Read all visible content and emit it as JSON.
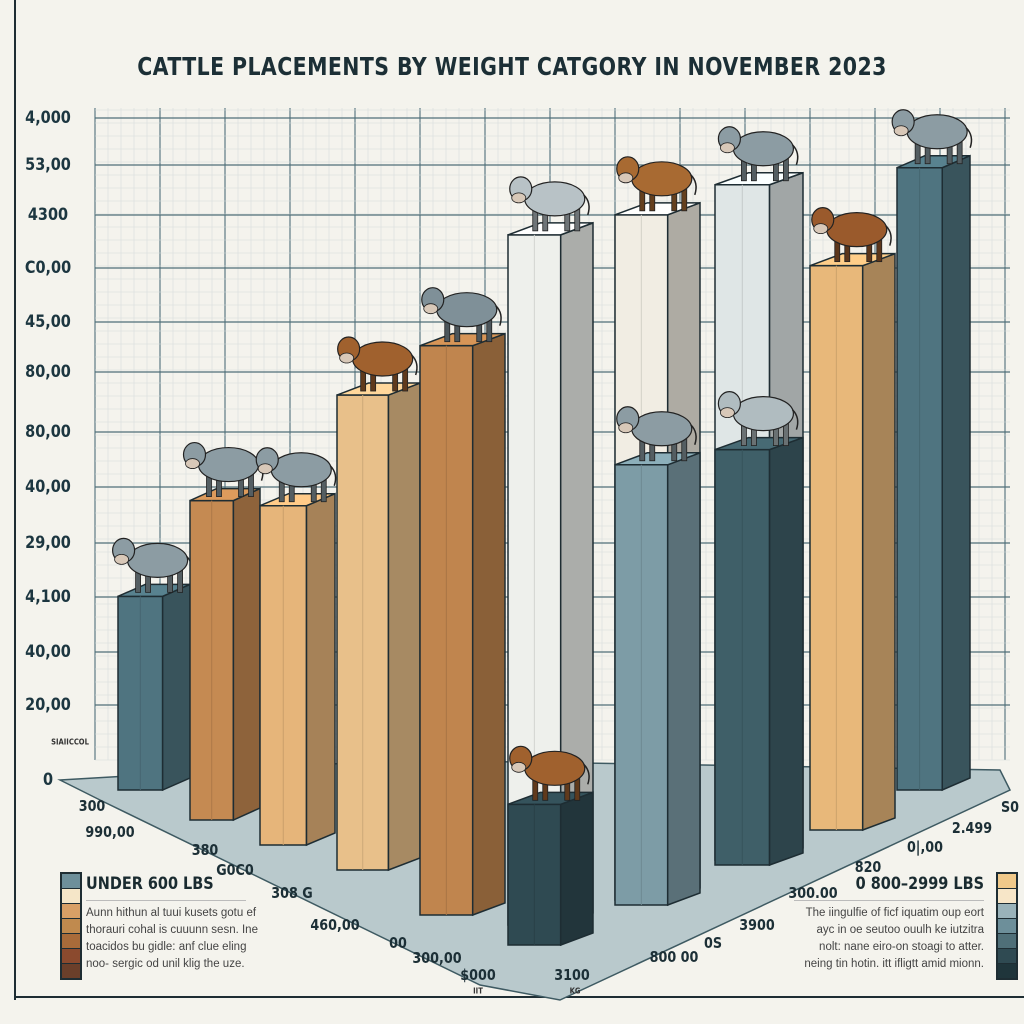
{
  "chart_data": {
    "type": "bar",
    "style": "3d-isometric",
    "title": "CATTLE PLACEMENTS BY WEIGHT CATGORY IN  NOVEMBER 2023",
    "ylim": [
      0,
      4000
    ],
    "grid": true,
    "y_tick_labels": [
      "4,000",
      "53,00",
      "4300",
      "C0,00",
      "45,00",
      "80,00",
      "80,00",
      "40,00",
      "29,00",
      "4,100",
      "40,00",
      "20,00",
      "0"
    ],
    "y_axis_small_label": "SIAIICCOL",
    "x_tick_labels_left": [
      "300",
      "990,00",
      "380",
      "G0C0",
      "308 G",
      "460,00",
      "00",
      "300,00",
      "$000"
    ],
    "x_tick_labels_right": [
      "3100",
      "800 00",
      "0S",
      "3900",
      "300.00",
      "820",
      "0|,00",
      "2.499",
      "S0"
    ],
    "x_tick_small_labels": [
      "IIT",
      "KG"
    ],
    "values": [
      1170,
      1930,
      2050,
      2870,
      3440,
      850,
      4170,
      4140,
      2660,
      2510,
      4080,
      3410,
      3760
    ],
    "bar_colors": [
      "#4f7480",
      "#c58a52",
      "#e6b57a",
      "#e8c08a",
      "#c0854e",
      "#2f4a52",
      "#eef0ec",
      "#f1ede3",
      "#7d9ca6",
      "#3f5f68",
      "#dfe6e6",
      "#e8b87a",
      "#4f7480"
    ],
    "cow_colors": [
      "#8c9ca3",
      "#8c9ca3",
      "#8c9ca3",
      "#a0612e",
      "#7f9098",
      "#a0612e",
      "#b8c2c6",
      "#a86a32",
      "#8c9ca3",
      "#b0bcc0",
      "#8c9ca3",
      "#9a5a2c",
      "#8c9ca3"
    ],
    "legend_left": {
      "title": "UNDER 600 LBS",
      "text": [
        "Aunn hithun al tuui kusets gotu ef",
        "thorauri cohal is cuuunn sesn. Ine",
        "toacidos bu gidle: anf clue eling",
        "noo- sergic od unil klig the uze."
      ],
      "colors": [
        "#6d8f9a",
        "#f5e6c8",
        "#d9a066",
        "#c08a4e",
        "#a86b3a",
        "#8b4a2e",
        "#6b3f2a"
      ]
    },
    "legend_right": {
      "title": "0 800–2999 LBS",
      "text": [
        "The iingulfie of ficf iquatim oup eort",
        "ayc in oe seutoo ouulh ke iutzitra",
        "nolt: nane eiro-on stoagi to atter.",
        "neing tin hotin. itt ifligtt amid mionn."
      ],
      "colors": [
        "#f0c98a",
        "#f7e6c8",
        "#9ab3ba",
        "#6d8f9a",
        "#4f6f78",
        "#2f4a52",
        "#1f353b"
      ]
    }
  }
}
